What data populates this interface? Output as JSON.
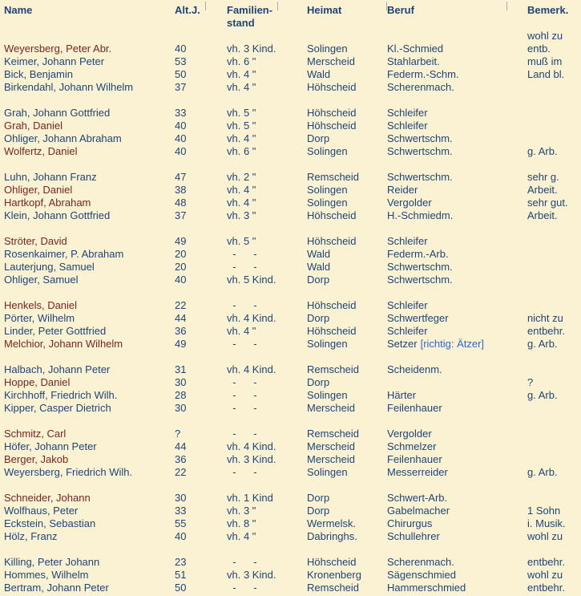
{
  "colors": {
    "background": "#faf2d2",
    "navy_text": "#1e4579",
    "maroon_name": "#7c2421",
    "note_blue": "#3068cc"
  },
  "header": {
    "name": "Name",
    "age": "Alt.J.",
    "family_line1": "Familien-",
    "family_line2": "stand",
    "home": "Heimat",
    "occupation": "Beruf",
    "remark": "Bemerk."
  },
  "pre_remark": "wohl zu",
  "groups": [
    [
      {
        "name": "Weyersberg, Peter Abr.",
        "alt": "40",
        "stand": "vh. 3 Kind.",
        "heimat": "Solingen",
        "beruf": "Kl.-Schmied",
        "beruf_note": "",
        "bemerk": "entb.",
        "maroon": true
      },
      {
        "name": "Keimer, Johann Peter",
        "alt": "53",
        "stand": "vh. 6 \"",
        "heimat": "Merscheid",
        "beruf": "Stahlarbeit.",
        "beruf_note": "",
        "bemerk": "muß im",
        "maroon": false
      },
      {
        "name": "Bick, Benjamin",
        "alt": "50",
        "stand": "vh. 4 \"",
        "heimat": "Wald",
        "beruf": "Federm.-Schm.",
        "beruf_note": "",
        "bemerk": "Land bl.",
        "maroon": false
      },
      {
        "name": "Birkendahl, Johann Wilhelm",
        "alt": "37",
        "stand": "vh. 4 \"",
        "heimat": "Höhscheid",
        "beruf": "Scherenmach.",
        "beruf_note": "",
        "bemerk": "",
        "maroon": false
      }
    ],
    [
      {
        "name": "Grah, Johann Gottfried",
        "alt": "33",
        "stand": "vh. 5 \"",
        "heimat": "Höhscheid",
        "beruf": "Schleifer",
        "beruf_note": "",
        "bemerk": "",
        "maroon": false
      },
      {
        "name": "Grah, Daniel",
        "alt": "40",
        "stand": "vh. 5 \"",
        "heimat": "Höhscheid",
        "beruf": "Schleifer",
        "beruf_note": "",
        "bemerk": "",
        "maroon": true
      },
      {
        "name": "Ohliger, Johann Abraham",
        "alt": "40",
        "stand": "vh. 4 \"",
        "heimat": "Dorp",
        "beruf": "Schwertschm.",
        "beruf_note": "",
        "bemerk": "",
        "maroon": false
      },
      {
        "name": "Wolfertz, Daniel",
        "alt": "40",
        "stand": "vh. 6 \"",
        "heimat": "Solingen",
        "beruf": "Schwertschm.",
        "beruf_note": "",
        "bemerk": "g. Arb.",
        "maroon": true
      }
    ],
    [
      {
        "name": "Luhn, Johann Franz",
        "alt": "47",
        "stand": "vh. 2 \"",
        "heimat": "Remscheid",
        "beruf": "Schwertschm.",
        "beruf_note": "",
        "bemerk": "sehr g.",
        "maroon": false
      },
      {
        "name": "Ohliger, Daniel",
        "alt": "38",
        "stand": "vh. 4 \"",
        "heimat": "Solingen",
        "beruf": "Reider",
        "beruf_note": "",
        "bemerk": "Arbeit.",
        "maroon": true
      },
      {
        "name": "Hartkopf, Abraham",
        "alt": "48",
        "stand": "vh. 4 \"",
        "heimat": "Solingen",
        "beruf": "Vergolder",
        "beruf_note": "",
        "bemerk": "sehr gut.",
        "maroon": true
      },
      {
        "name": "Klein, Johann Gottfried",
        "alt": "37",
        "stand": "vh. 3 \"",
        "heimat": "Höhscheid",
        "beruf": "H.-Schmiedm.",
        "beruf_note": "",
        "bemerk": "Arbeit.",
        "maroon": false
      }
    ],
    [
      {
        "name": "Ströter, David",
        "alt": "49",
        "stand": "vh. 5 \"",
        "heimat": "Höhscheid",
        "beruf": "Schleifer",
        "beruf_note": "",
        "bemerk": "",
        "maroon": true
      },
      {
        "name": "Rosenkaimer, P. Abraham",
        "alt": "20",
        "stand": "  -      -",
        "heimat": "Wald",
        "beruf": "Federm.-Arb.",
        "beruf_note": "",
        "bemerk": "",
        "maroon": false
      },
      {
        "name": "Lauterjung, Samuel",
        "alt": "20",
        "stand": "  -      -",
        "heimat": "Wald",
        "beruf": "Schwertschm.",
        "beruf_note": "",
        "bemerk": "",
        "maroon": false
      },
      {
        "name": "Ohliger, Samuel",
        "alt": "40",
        "stand": "vh. 5 Kind.",
        "heimat": "Dorp",
        "beruf": "Schwertschm.",
        "beruf_note": "",
        "bemerk": "",
        "maroon": false
      }
    ],
    [
      {
        "name": "Henkels, Daniel",
        "alt": "22",
        "stand": "  -      -",
        "heimat": "Höhscheid",
        "beruf": "Schleifer",
        "beruf_note": "",
        "bemerk": "",
        "maroon": true
      },
      {
        "name": "Pörter, Wilhelm",
        "alt": "44",
        "stand": "vh. 4 Kind.",
        "heimat": "Dorp",
        "beruf": "Schwertfeger",
        "beruf_note": "",
        "bemerk": "nicht zu",
        "maroon": false
      },
      {
        "name": "Linder, Peter Gottfried",
        "alt": "36",
        "stand": "vh. 4 \"",
        "heimat": "Höhscheid",
        "beruf": "Schleifer",
        "beruf_note": "",
        "bemerk": "entbehr.",
        "maroon": false
      },
      {
        "name": "Melchior, Johann Wilhelm",
        "alt": "49",
        "stand": "  -      -",
        "heimat": "Solingen",
        "beruf": "Setzer",
        "beruf_note": "[richtig: Ätzer]",
        "bemerk": "g. Arb.",
        "maroon": true
      }
    ],
    [
      {
        "name": "Halbach, Johann Peter",
        "alt": "31",
        "stand": "vh. 4 Kind.",
        "heimat": "Remscheid",
        "beruf": "Scheidenm.",
        "beruf_note": "",
        "bemerk": "",
        "maroon": false
      },
      {
        "name": "Hoppe, Daniel",
        "alt": "30",
        "stand": "  -      -",
        "heimat": "Dorp",
        "beruf": "",
        "beruf_note": "",
        "bemerk": "?",
        "maroon": true
      },
      {
        "name": "Kirchhoff, Friedrich Wilh.",
        "alt": "28",
        "stand": "  -      -",
        "heimat": "Solingen",
        "beruf": "Härter",
        "beruf_note": "",
        "bemerk": "g. Arb.",
        "maroon": false
      },
      {
        "name": "Kipper, Casper Dietrich",
        "alt": "30",
        "stand": "  -      -",
        "heimat": "Merscheid",
        "beruf": "Feilenhauer",
        "beruf_note": "",
        "bemerk": "",
        "maroon": false
      }
    ],
    [
      {
        "name": "Schmitz, Carl",
        "alt": "?",
        "stand": "  -      -",
        "heimat": "Remscheid",
        "beruf": "Vergolder",
        "beruf_note": "",
        "bemerk": "",
        "maroon": true
      },
      {
        "name": "Höfer, Johann Peter",
        "alt": "44",
        "stand": "vh. 4 Kind.",
        "heimat": "Merscheid",
        "beruf": "Schmelzer",
        "beruf_note": "",
        "bemerk": "",
        "maroon": false
      },
      {
        "name": "Berger, Jakob",
        "alt": "36",
        "stand": "vh. 3 Kind.",
        "heimat": "Merscheid",
        "beruf": "Feilenhauer",
        "beruf_note": "",
        "bemerk": "",
        "maroon": true
      },
      {
        "name": "Weyersberg, Friedrich Wilh.",
        "alt": "22",
        "stand": "  -      -",
        "heimat": "Solingen",
        "beruf": "Messerreider",
        "beruf_note": "",
        "bemerk": "g. Arb.",
        "maroon": false
      }
    ],
    [
      {
        "name": "Schneider, Johann",
        "alt": "30",
        "stand": "vh. 1 Kind",
        "heimat": "Dorp",
        "beruf": "Schwert-Arb.",
        "beruf_note": "",
        "bemerk": "",
        "maroon": true
      },
      {
        "name": "Wolfhaus, Peter",
        "alt": "33",
        "stand": "vh. 3 \"",
        "heimat": "Dorp",
        "beruf": "Gabelmacher",
        "beruf_note": "",
        "bemerk": "1 Sohn",
        "maroon": false
      },
      {
        "name": "Eckstein, Sebastian",
        "alt": "55",
        "stand": "vh. 8 \"",
        "heimat": "Wermelsk.",
        "beruf": "Chirurgus",
        "beruf_note": "",
        "bemerk": "i. Musik.",
        "maroon": false
      },
      {
        "name": "Hölz, Franz",
        "alt": "40",
        "stand": "vh. 4 \"",
        "heimat": "Dabringhs.",
        "beruf": "Schullehrer",
        "beruf_note": "",
        "bemerk": "wohl zu",
        "maroon": false
      }
    ],
    [
      {
        "name": "Killing, Peter Johann",
        "alt": "23",
        "stand": "  -      -",
        "heimat": "Höhscheid",
        "beruf": "Scherenmach.",
        "beruf_note": "",
        "bemerk": "entbehr.",
        "maroon": false
      },
      {
        "name": "Hommes, Wilhelm",
        "alt": "51",
        "stand": "vh. 3 Kind.",
        "heimat": "Kronenberg",
        "beruf": "Sägenschmied",
        "beruf_note": "",
        "bemerk": "wohl zu",
        "maroon": false
      },
      {
        "name": "Bertram, Johann Peter",
        "alt": "50",
        "stand": "  -      -",
        "heimat": "Remscheid",
        "beruf": "Hammerschmied",
        "beruf_note": "",
        "bemerk": "entbehr.",
        "maroon": false
      }
    ]
  ]
}
